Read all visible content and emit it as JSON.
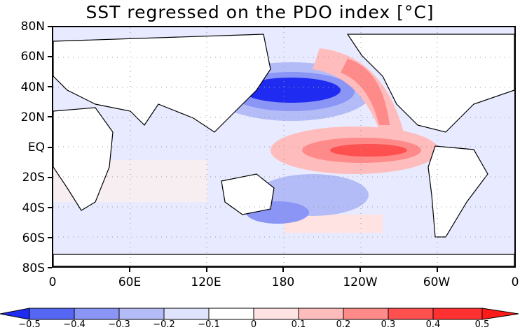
{
  "title": "SST regressed on the PDO index [°C]",
  "y_labels": [
    "80N",
    "60N",
    "40N",
    "20N",
    "EQ",
    "20S",
    "40S",
    "60S",
    "80S"
  ],
  "x_labels": [
    "0",
    "60E",
    "120E",
    "180",
    "120W",
    "60W",
    "0"
  ],
  "colorbar": {
    "labels": [
      "−0.5",
      "−0.4",
      "−0.3",
      "−0.2",
      "−0.1",
      "0",
      "0.1",
      "0.2",
      "0.3",
      "0.4",
      "0.5"
    ],
    "colors": [
      "#1f2bf0",
      "#5566f2",
      "#8a95f5",
      "#b4bcf8",
      "#dfe3fb",
      "#ffffff",
      "#ffe2e2",
      "#ffbcbc",
      "#ff8a8a",
      "#ff5050",
      "#ff1a1a"
    ]
  },
  "colors": {
    "land": "#ffffff",
    "coast": "#000000",
    "neutral_ocean": "#e8ebff"
  }
}
